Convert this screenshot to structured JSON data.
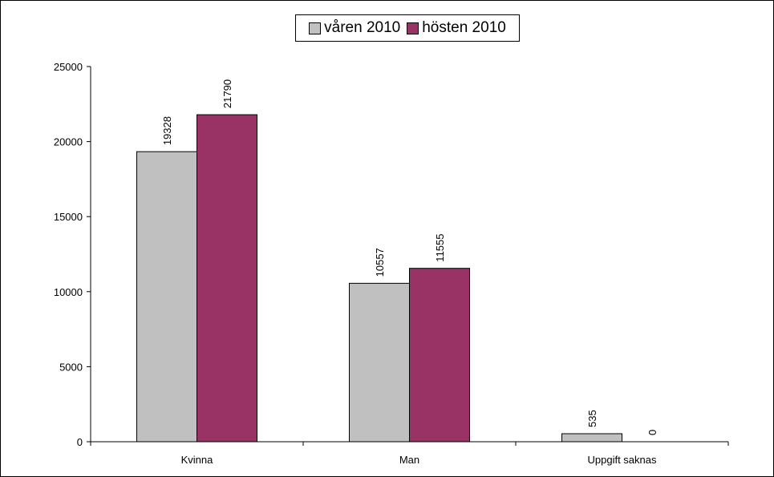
{
  "chart_data": {
    "type": "bar",
    "categories": [
      "Kvinna",
      "Man",
      "Uppgift saknas"
    ],
    "series": [
      {
        "name": "våren 2010",
        "values": [
          19328,
          10557,
          535
        ],
        "color": "#c0c0c0"
      },
      {
        "name": "hösten 2010",
        "values": [
          21790,
          11555,
          0
        ],
        "color": "#993366"
      }
    ],
    "ylim": [
      0,
      25000
    ],
    "yticks": [
      0,
      5000,
      10000,
      15000,
      20000,
      25000
    ],
    "data_labels": true,
    "legend_placement": "top-center",
    "grid": false
  }
}
